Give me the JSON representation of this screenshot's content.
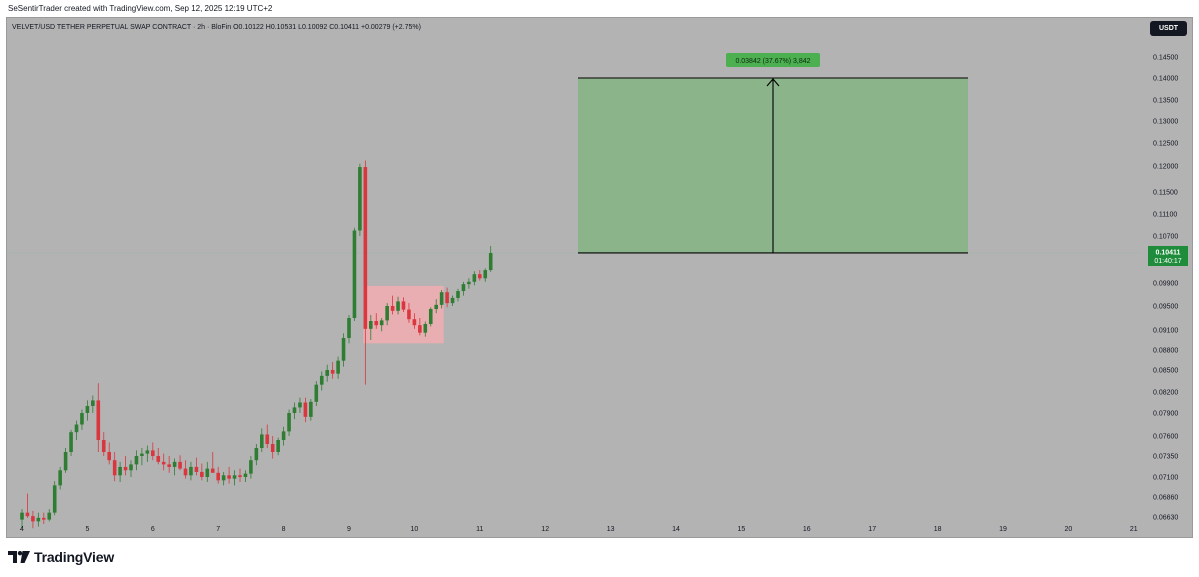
{
  "header": {
    "credit": "SeSentirTrader created with TradingView.com, Sep 12, 2025 12:19 UTC+2"
  },
  "symbol_info": {
    "line": "VELVET/USD TETHER PERPETUAL SWAP CONTRACT · 2h · BloFin  O0.10122  H0.10531  L0.10092  C0.10411  +0.00279 (+2.75%)"
  },
  "toolbar": {
    "currency_label": "USDT"
  },
  "price_tag": {
    "price": "0.10411",
    "countdown": "01:40:17"
  },
  "measure_label": "0.03842 (37.67%) 3,842",
  "footer": {
    "logo_text": "TradingView"
  },
  "colors": {
    "up": "#2e7d32",
    "down": "#d9363e",
    "target_zone": "#8bb48b",
    "consolidation_zone": "#e8aeb1",
    "price_tag": "#1e8c3a",
    "background": "#b3b3b3"
  },
  "chart_data": {
    "type": "candlestick",
    "y_axis_ticks": [
      "0.14500",
      "0.14000",
      "0.13500",
      "0.13000",
      "0.12500",
      "0.12000",
      "0.11500",
      "0.11100",
      "0.10700",
      "0.09900",
      "0.09500",
      "0.09100",
      "0.08800",
      "0.08500",
      "0.08200",
      "0.07900",
      "0.07600",
      "0.07350",
      "0.07100",
      "0.06860",
      "0.06630"
    ],
    "x_axis_ticks": [
      "4",
      "5",
      "6",
      "7",
      "8",
      "9",
      "10",
      "11",
      "12",
      "13",
      "14",
      "15",
      "16",
      "17",
      "18",
      "19",
      "20",
      "21"
    ],
    "ohlc": [
      [
        0.066,
        0.0672,
        0.065,
        0.0668
      ],
      [
        0.0668,
        0.069,
        0.0662,
        0.0664
      ],
      [
        0.0664,
        0.067,
        0.065,
        0.0658
      ],
      [
        0.0658,
        0.0668,
        0.0652,
        0.0662
      ],
      [
        0.0662,
        0.0668,
        0.0655,
        0.066
      ],
      [
        0.066,
        0.0672,
        0.0658,
        0.0668
      ],
      [
        0.0668,
        0.0705,
        0.0665,
        0.07
      ],
      [
        0.07,
        0.0722,
        0.0695,
        0.0718
      ],
      [
        0.0718,
        0.0745,
        0.0715,
        0.074
      ],
      [
        0.074,
        0.0768,
        0.0735,
        0.0765
      ],
      [
        0.0765,
        0.078,
        0.0755,
        0.0775
      ],
      [
        0.0775,
        0.0795,
        0.0768,
        0.079
      ],
      [
        0.079,
        0.0808,
        0.078,
        0.08
      ],
      [
        0.08,
        0.0815,
        0.079,
        0.0808
      ],
      [
        0.0808,
        0.0832,
        0.074,
        0.0755
      ],
      [
        0.0755,
        0.0765,
        0.0735,
        0.074
      ],
      [
        0.074,
        0.0752,
        0.0725,
        0.073
      ],
      [
        0.073,
        0.074,
        0.0705,
        0.0712
      ],
      [
        0.0712,
        0.0728,
        0.0704,
        0.0722
      ],
      [
        0.0722,
        0.0735,
        0.0712,
        0.0718
      ],
      [
        0.0718,
        0.073,
        0.071,
        0.0725
      ],
      [
        0.0725,
        0.0742,
        0.0718,
        0.0735
      ],
      [
        0.0735,
        0.0745,
        0.0724,
        0.0738
      ],
      [
        0.0738,
        0.0748,
        0.0728,
        0.0742
      ],
      [
        0.0742,
        0.0752,
        0.073,
        0.0735
      ],
      [
        0.0735,
        0.0745,
        0.0725,
        0.0728
      ],
      [
        0.0728,
        0.0738,
        0.0718,
        0.0725
      ],
      [
        0.0725,
        0.0735,
        0.0715,
        0.0722
      ],
      [
        0.0722,
        0.0732,
        0.0712,
        0.0728
      ],
      [
        0.0728,
        0.0736,
        0.0718,
        0.072
      ],
      [
        0.072,
        0.073,
        0.0708,
        0.0712
      ],
      [
        0.0712,
        0.0728,
        0.0706,
        0.0722
      ],
      [
        0.0722,
        0.0733,
        0.0712,
        0.0716
      ],
      [
        0.0716,
        0.0726,
        0.0706,
        0.071
      ],
      [
        0.071,
        0.0728,
        0.0704,
        0.072
      ],
      [
        0.072,
        0.074,
        0.0715,
        0.0715
      ],
      [
        0.0715,
        0.0722,
        0.0702,
        0.0706
      ],
      [
        0.0706,
        0.0716,
        0.07,
        0.0712
      ],
      [
        0.0712,
        0.0722,
        0.0702,
        0.0708
      ],
      [
        0.0708,
        0.0718,
        0.07,
        0.0712
      ],
      [
        0.0712,
        0.072,
        0.0704,
        0.071
      ],
      [
        0.071,
        0.0718,
        0.0704,
        0.0714
      ],
      [
        0.0714,
        0.0735,
        0.0708,
        0.073
      ],
      [
        0.073,
        0.075,
        0.0724,
        0.0745
      ],
      [
        0.0745,
        0.077,
        0.074,
        0.0762
      ],
      [
        0.0762,
        0.0775,
        0.0745,
        0.075
      ],
      [
        0.075,
        0.076,
        0.0732,
        0.074
      ],
      [
        0.074,
        0.0758,
        0.0736,
        0.0755
      ],
      [
        0.0755,
        0.0772,
        0.0748,
        0.0766
      ],
      [
        0.0766,
        0.0795,
        0.076,
        0.079
      ],
      [
        0.079,
        0.0805,
        0.0782,
        0.0798
      ],
      [
        0.0798,
        0.0812,
        0.079,
        0.0805
      ],
      [
        0.0805,
        0.0812,
        0.0778,
        0.0785
      ],
      [
        0.0785,
        0.081,
        0.078,
        0.0806
      ],
      [
        0.0806,
        0.0835,
        0.08,
        0.083
      ],
      [
        0.083,
        0.0848,
        0.0822,
        0.0842
      ],
      [
        0.0842,
        0.0858,
        0.0834,
        0.085
      ],
      [
        0.085,
        0.0862,
        0.0838,
        0.0845
      ],
      [
        0.0845,
        0.087,
        0.0838,
        0.0864
      ],
      [
        0.0864,
        0.0905,
        0.0855,
        0.0898
      ],
      [
        0.0898,
        0.0935,
        0.089,
        0.093
      ],
      [
        0.093,
        0.1085,
        0.0925,
        0.108
      ],
      [
        0.108,
        0.1205,
        0.107,
        0.1198
      ],
      [
        0.1198,
        0.1212,
        0.083,
        0.0912
      ],
      [
        0.0912,
        0.0935,
        0.0895,
        0.0925
      ],
      [
        0.0925,
        0.0938,
        0.0912,
        0.0918
      ],
      [
        0.0918,
        0.093,
        0.0908,
        0.0926
      ],
      [
        0.0926,
        0.0955,
        0.0918,
        0.095
      ],
      [
        0.095,
        0.0968,
        0.0936,
        0.0942
      ],
      [
        0.0942,
        0.0966,
        0.0936,
        0.0958
      ],
      [
        0.0958,
        0.0965,
        0.094,
        0.0944
      ],
      [
        0.0944,
        0.0955,
        0.0922,
        0.0928
      ],
      [
        0.0928,
        0.0938,
        0.0912,
        0.0918
      ],
      [
        0.0918,
        0.093,
        0.0902,
        0.0906
      ],
      [
        0.0906,
        0.0924,
        0.09,
        0.092
      ],
      [
        0.092,
        0.0948,
        0.0916,
        0.0945
      ],
      [
        0.0945,
        0.0962,
        0.0938,
        0.0952
      ],
      [
        0.0952,
        0.0978,
        0.0946,
        0.0974
      ],
      [
        0.0974,
        0.0982,
        0.0948,
        0.0955
      ],
      [
        0.0955,
        0.0968,
        0.095,
        0.0964
      ],
      [
        0.0964,
        0.098,
        0.0958,
        0.0976
      ],
      [
        0.0976,
        0.0992,
        0.0968,
        0.0988
      ],
      [
        0.0988,
        0.0998,
        0.098,
        0.0992
      ],
      [
        0.0992,
        0.101,
        0.0986,
        0.1005
      ],
      [
        0.1005,
        0.1012,
        0.0994,
        0.0998
      ],
      [
        0.0998,
        0.1015,
        0.0992,
        0.1012
      ],
      [
        0.1012,
        0.1053,
        0.1009,
        0.1041
      ]
    ],
    "target_zone_range": [
      0.10411,
      0.14
    ],
    "consolidation_zone_range": [
      0.089,
      0.0985
    ],
    "last_price": 0.10411
  }
}
